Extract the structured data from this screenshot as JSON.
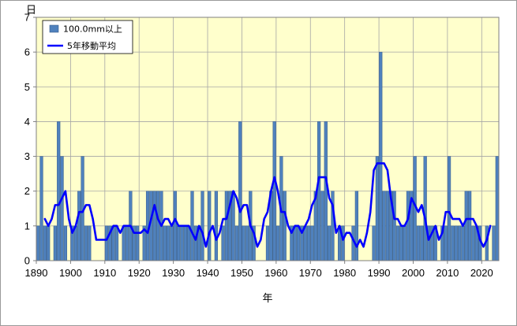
{
  "chart_data": {
    "type": "bar",
    "ylabel": "日",
    "xlabel": "年",
    "ylim": [
      0,
      7
    ],
    "yticks": [
      0,
      1,
      2,
      3,
      4,
      5,
      6,
      7
    ],
    "xlim": [
      1890,
      2024
    ],
    "xticks": [
      1890,
      1900,
      1910,
      1920,
      1930,
      1940,
      1950,
      1960,
      1970,
      1980,
      1990,
      2000,
      2010,
      2020
    ],
    "grid": true,
    "legend_placement": "top-left",
    "colors": {
      "plot_background": "#ffffcc",
      "bar_fill": "#4f81bd",
      "bar_stroke": "#385d8a",
      "line": "#0000ff",
      "grid": "#a6a6a6"
    },
    "series": [
      {
        "name": "100.0mm以上",
        "kind": "bar",
        "years": [
          1890,
          1891,
          1892,
          1893,
          1894,
          1895,
          1896,
          1897,
          1898,
          1899,
          1900,
          1901,
          1902,
          1903,
          1904,
          1905,
          1906,
          1907,
          1908,
          1909,
          1910,
          1911,
          1912,
          1913,
          1914,
          1915,
          1916,
          1917,
          1918,
          1919,
          1920,
          1921,
          1922,
          1923,
          1924,
          1925,
          1926,
          1927,
          1928,
          1929,
          1930,
          1931,
          1932,
          1933,
          1934,
          1935,
          1936,
          1937,
          1938,
          1939,
          1940,
          1941,
          1942,
          1943,
          1944,
          1945,
          1946,
          1947,
          1948,
          1949,
          1950,
          1951,
          1952,
          1953,
          1954,
          1955,
          1956,
          1957,
          1958,
          1959,
          1960,
          1961,
          1962,
          1963,
          1964,
          1965,
          1966,
          1967,
          1968,
          1969,
          1970,
          1971,
          1972,
          1973,
          1974,
          1975,
          1976,
          1977,
          1978,
          1979,
          1980,
          1981,
          1982,
          1983,
          1984,
          1985,
          1986,
          1987,
          1988,
          1989,
          1990,
          1991,
          1992,
          1993,
          1994,
          1995,
          1996,
          1997,
          1998,
          1999,
          2000,
          2001,
          2002,
          2003,
          2004,
          2005,
          2006,
          2007,
          2008,
          2009,
          2010,
          2011,
          2012,
          2013,
          2014,
          2015,
          2016,
          2017,
          2018,
          2019,
          2020,
          2021,
          2022,
          2023,
          2024
        ],
        "values": [
          1,
          3,
          1,
          1,
          0,
          1,
          4,
          3,
          1,
          0,
          1,
          1,
          2,
          3,
          1,
          1,
          0,
          0,
          0,
          0,
          1,
          1,
          1,
          1,
          0,
          1,
          1,
          2,
          1,
          1,
          0,
          1,
          2,
          2,
          2,
          2,
          2,
          1,
          1,
          1,
          2,
          1,
          1,
          1,
          1,
          2,
          1,
          1,
          2,
          0,
          2,
          0,
          2,
          0,
          1,
          2,
          2,
          2,
          1,
          4,
          1,
          1,
          2,
          1,
          0,
          0,
          0,
          1,
          2,
          4,
          1,
          3,
          2,
          0,
          1,
          1,
          1,
          1,
          1,
          1,
          1,
          2,
          4,
          2,
          4,
          1,
          2,
          0,
          1,
          1,
          0,
          0,
          1,
          2,
          0,
          0,
          0,
          0,
          1,
          3,
          6,
          2,
          2,
          2,
          2,
          1,
          1,
          1,
          2,
          2,
          3,
          1,
          1,
          3,
          1,
          1,
          1,
          0,
          1,
          1,
          3,
          1,
          1,
          1,
          1,
          2,
          2,
          1,
          1,
          1,
          0,
          1,
          0,
          1,
          3
        ]
      },
      {
        "name": "5年移動平均",
        "kind": "line",
        "years": [
          1892,
          1893,
          1894,
          1895,
          1896,
          1897,
          1898,
          1899,
          1900,
          1901,
          1902,
          1903,
          1904,
          1905,
          1906,
          1907,
          1908,
          1909,
          1910,
          1911,
          1912,
          1913,
          1914,
          1915,
          1916,
          1917,
          1918,
          1919,
          1920,
          1921,
          1922,
          1923,
          1924,
          1925,
          1926,
          1927,
          1928,
          1929,
          1930,
          1931,
          1932,
          1933,
          1934,
          1935,
          1936,
          1937,
          1938,
          1939,
          1940,
          1941,
          1942,
          1943,
          1944,
          1945,
          1946,
          1947,
          1948,
          1949,
          1950,
          1951,
          1952,
          1953,
          1954,
          1955,
          1956,
          1957,
          1958,
          1959,
          1960,
          1961,
          1962,
          1963,
          1964,
          1965,
          1966,
          1967,
          1968,
          1969,
          1970,
          1971,
          1972,
          1973,
          1974,
          1975,
          1976,
          1977,
          1978,
          1979,
          1980,
          1981,
          1982,
          1983,
          1984,
          1985,
          1986,
          1987,
          1988,
          1989,
          1990,
          1991,
          1992,
          1993,
          1994,
          1995,
          1996,
          1997,
          1998,
          1999,
          2000,
          2001,
          2002,
          2003,
          2004,
          2005,
          2006,
          2007,
          2008,
          2009,
          2010,
          2011,
          2012,
          2013,
          2014,
          2015,
          2016,
          2017,
          2018,
          2019,
          2020,
          2021,
          2022
        ],
        "values": [
          1.2,
          1.0,
          1.2,
          1.6,
          1.6,
          1.8,
          2.0,
          1.2,
          0.8,
          1.0,
          1.4,
          1.4,
          1.6,
          1.6,
          1.2,
          0.6,
          0.6,
          0.6,
          0.6,
          0.8,
          1.0,
          1.0,
          0.8,
          1.0,
          1.0,
          1.0,
          0.8,
          0.8,
          0.8,
          0.9,
          0.8,
          1.2,
          1.6,
          1.2,
          1.0,
          1.2,
          1.2,
          1.0,
          1.2,
          1.0,
          1.0,
          1.0,
          1.0,
          0.8,
          0.6,
          1.0,
          0.8,
          0.4,
          0.8,
          1.0,
          0.6,
          0.8,
          1.2,
          1.2,
          1.6,
          2.0,
          1.8,
          1.4,
          1.6,
          1.6,
          1.0,
          0.8,
          0.4,
          0.6,
          1.2,
          1.4,
          2.0,
          2.4,
          2.0,
          1.4,
          1.4,
          1.0,
          0.8,
          1.0,
          1.0,
          0.8,
          1.0,
          1.2,
          1.6,
          1.8,
          2.4,
          2.4,
          2.4,
          1.8,
          1.6,
          0.8,
          1.0,
          0.6,
          0.8,
          0.8,
          0.6,
          0.4,
          0.6,
          0.4,
          0.8,
          1.4,
          2.6,
          2.8,
          2.8,
          2.8,
          2.6,
          1.8,
          1.2,
          1.2,
          1.0,
          1.0,
          1.2,
          1.8,
          1.6,
          1.4,
          1.6,
          1.2,
          0.6,
          0.8,
          1.0,
          0.6,
          0.8,
          1.4,
          1.4,
          1.2,
          1.2,
          1.2,
          1.0,
          1.2,
          1.2,
          1.2,
          1.0,
          0.6,
          0.4,
          0.6,
          1.0
        ]
      }
    ]
  }
}
